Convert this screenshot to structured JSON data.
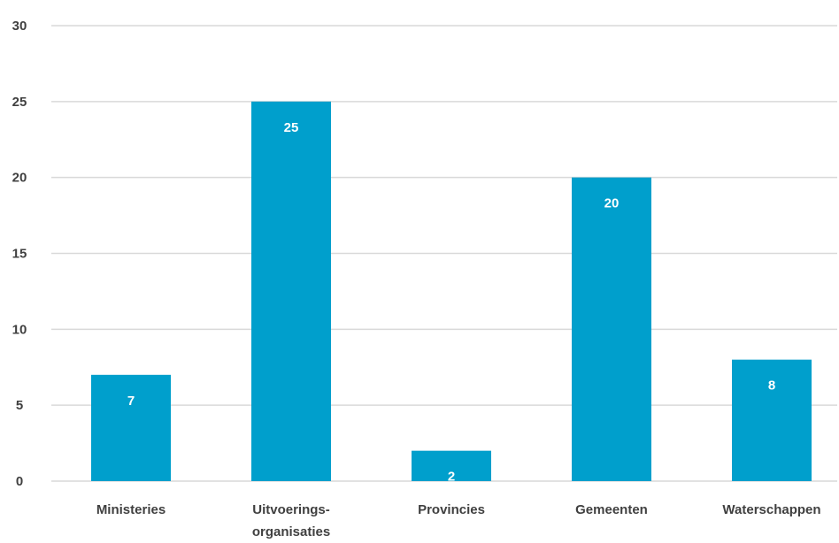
{
  "chart_data": {
    "type": "bar",
    "title": "",
    "xlabel": "",
    "ylabel": "",
    "categories": [
      [
        "Ministeries"
      ],
      [
        "Uitvoerings-",
        "organisaties"
      ],
      [
        "Provincies"
      ],
      [
        "Gemeenten"
      ],
      [
        "Waterschappen"
      ]
    ],
    "values": [
      7,
      25,
      2,
      20,
      8
    ],
    "ylim": [
      0,
      30
    ],
    "yticks": [
      "0",
      "5",
      "10",
      "15",
      "20",
      "25",
      "30"
    ],
    "grid": true,
    "legend": "none",
    "data_labels": [
      "7",
      "25",
      "2",
      "20",
      "8"
    ],
    "colors": {
      "bar": "#009fcc",
      "grid": "#d9d9d9",
      "axis_text": "#404040",
      "data_label": "#ffffff"
    }
  }
}
